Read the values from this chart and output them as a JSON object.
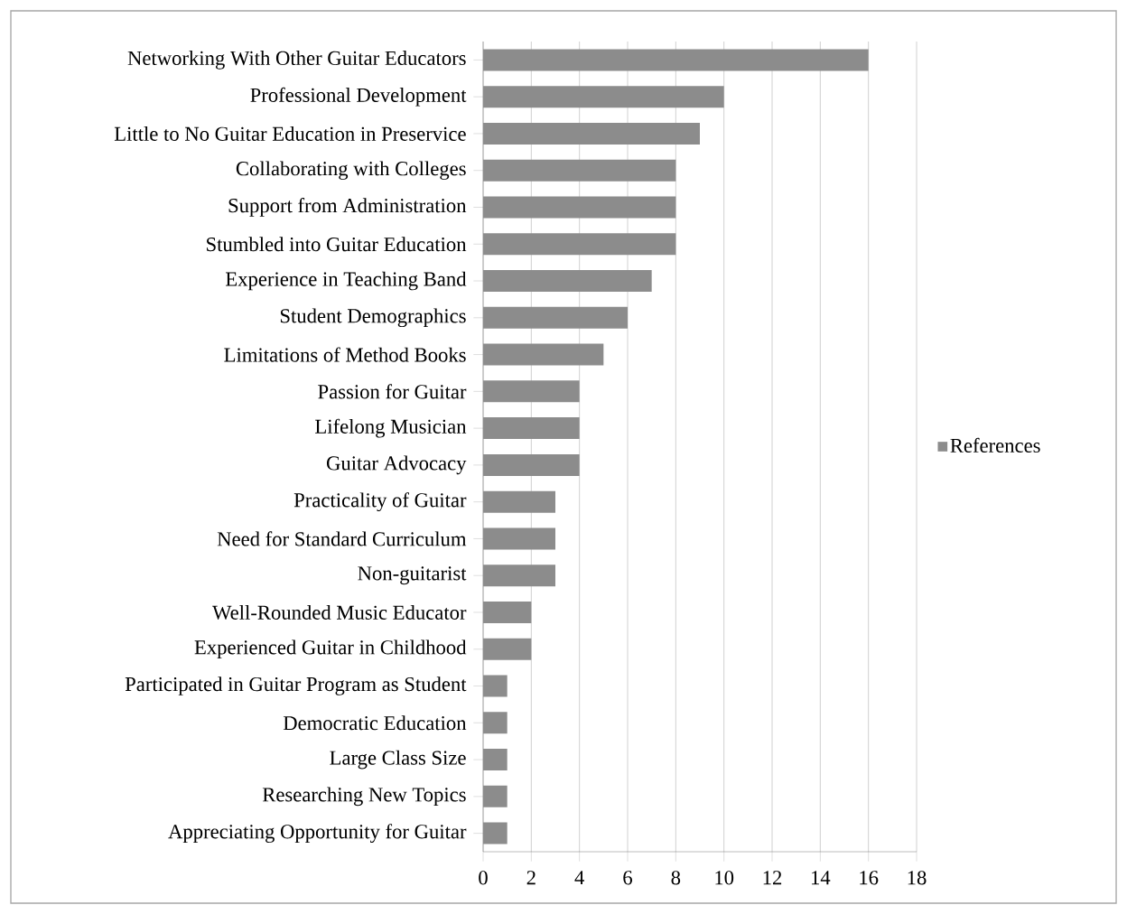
{
  "chart_data": {
    "type": "bar",
    "orientation": "horizontal",
    "categories": [
      "Networking With Other Guitar Educators",
      "Professional Development",
      "Little to No Guitar Education in Preservice",
      "Collaborating with Colleges",
      "Support from Administration",
      "Stumbled into Guitar Education",
      "Experience in Teaching Band",
      "Student Demographics",
      "Limitations of Method Books",
      "Passion for Guitar",
      "Lifelong Musician",
      "Guitar Advocacy",
      "Practicality of Guitar",
      "Need for Standard Curriculum",
      "Non-guitarist",
      "Well-Rounded Music Educator",
      "Experienced Guitar in Childhood",
      "Participated in Guitar Program as Student",
      "Democratic Education",
      "Large Class Size",
      "Researching New Topics",
      "Appreciating Opportunity for Guitar"
    ],
    "series": [
      {
        "name": "References",
        "color": "#8c8c8c",
        "values": [
          16,
          10,
          9,
          8,
          8,
          8,
          7,
          6,
          5,
          4,
          4,
          4,
          3,
          3,
          3,
          2,
          2,
          1,
          1,
          1,
          1,
          1
        ]
      }
    ],
    "xlim": [
      0,
      18
    ],
    "xticks": [
      0,
      2,
      4,
      6,
      8,
      10,
      12,
      14,
      16,
      18
    ],
    "grid": "x",
    "legend": "right"
  }
}
